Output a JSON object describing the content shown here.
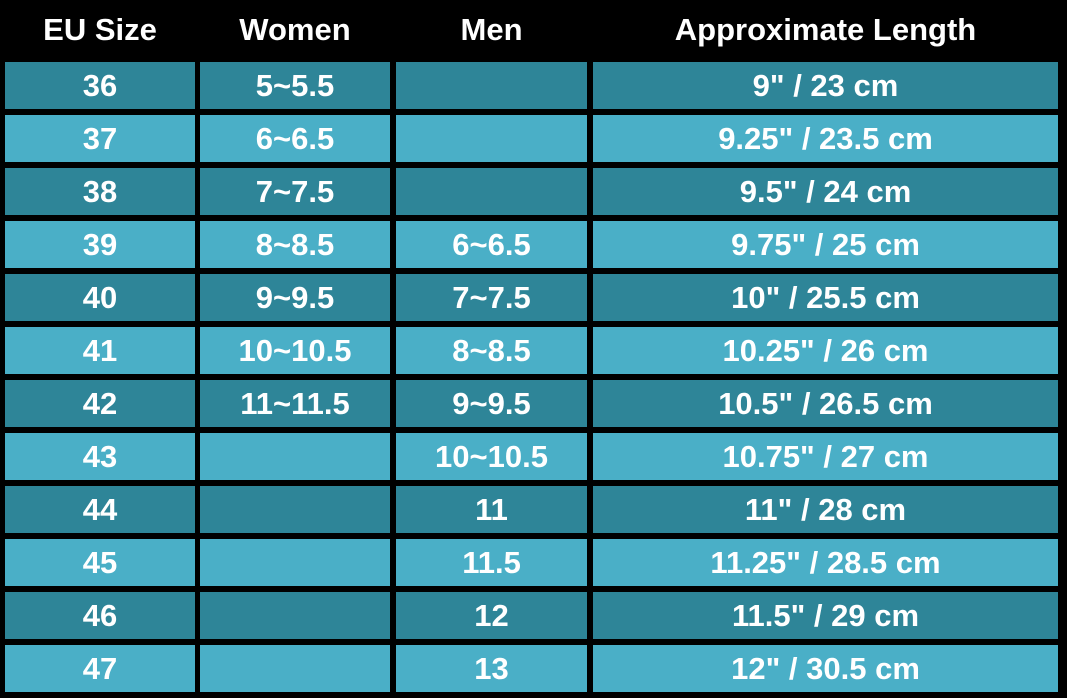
{
  "table": {
    "header": [
      "EU Size",
      "Women",
      "Men",
      "Approximate Length"
    ],
    "rows": [
      [
        "36",
        "5~5.5",
        null,
        "9\" / 23 cm"
      ],
      [
        "37",
        "6~6.5",
        null,
        "9.25\" / 23.5 cm"
      ],
      [
        "38",
        "7~7.5",
        null,
        "9.5\" / 24 cm"
      ],
      [
        "39",
        "8~8.5",
        "6~6.5",
        "9.75\" / 25 cm"
      ],
      [
        "40",
        "9~9.5",
        "7~7.5",
        "10\" / 25.5 cm"
      ],
      [
        "41",
        "10~10.5",
        "8~8.5",
        "10.25\" / 26 cm"
      ],
      [
        "42",
        "11~11.5",
        "9~9.5",
        "10.5\" / 26.5 cm"
      ],
      [
        "43",
        null,
        "10~10.5",
        "10.75\" / 27 cm"
      ],
      [
        "44",
        null,
        "11",
        "11\" / 28 cm"
      ],
      [
        "45",
        null,
        "11.5",
        "11.25\" / 28.5 cm"
      ],
      [
        "46",
        null,
        "12",
        "11.5\" / 29 cm"
      ],
      [
        "47",
        null,
        "13",
        "12\" / 30.5 cm"
      ]
    ]
  }
}
